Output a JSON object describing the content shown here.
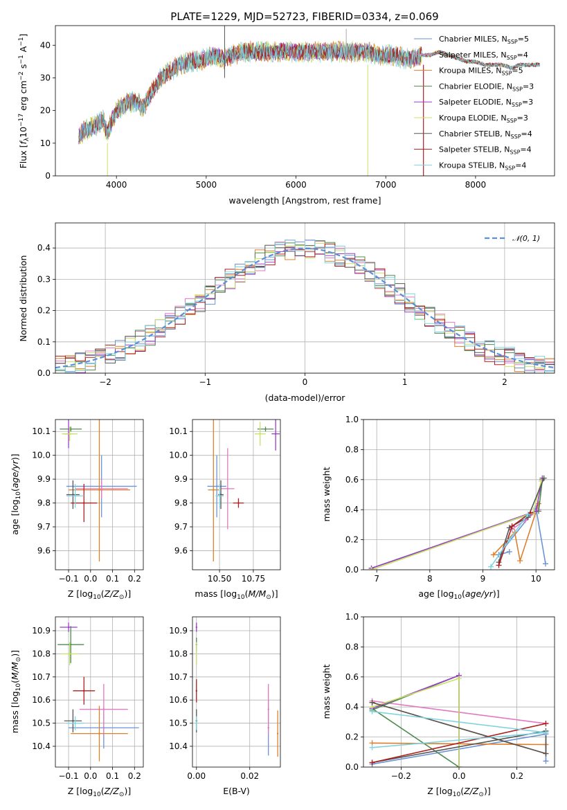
{
  "title": "PLATE=1229, MJD=52723, FIBERID=0334, z=0.069",
  "colors": {
    "chabrier_miles": "#6a93d6",
    "salpeter_miles": "#e377c2",
    "kroupa_miles": "#de7f2a",
    "chabrier_elodie": "#4d8c4d",
    "salpeter_elodie": "#9b3fc7",
    "kroupa_elodie": "#c9e06a",
    "chabrier_stelib": "#555555",
    "salpeter_stelib": "#b01c1c",
    "kroupa_stelib": "#7fd3e0"
  },
  "chart_data": [
    {
      "id": "spectrum",
      "type": "line",
      "title": "PLATE=1229, MJD=52723, FIBERID=0334, z=0.069",
      "xlabel": "wavelength [Angstrom, rest frame]",
      "ylabel": "Flux [f_λ 10^-17 erg cm^-2 s^-1 A^-1]",
      "xlim": [
        3320,
        8880
      ],
      "ylim": [
        0,
        46
      ],
      "xticks": [
        4000,
        5000,
        6000,
        7000,
        8000
      ],
      "yticks": [
        0,
        10,
        20,
        30,
        40
      ],
      "legend_position": "top-right",
      "series": [
        {
          "key": "chabrier_miles",
          "label": "Chabrier MILES, N",
          "sub": "SSP",
          "suffix": "=5"
        },
        {
          "key": "salpeter_miles",
          "label": "Salpeter MILES, N",
          "sub": "SSP",
          "suffix": "=4"
        },
        {
          "key": "kroupa_miles",
          "label": "Kroupa MILES, N",
          "sub": "SSP",
          "suffix": "=5"
        },
        {
          "key": "chabrier_elodie",
          "label": "Chabrier ELODIE, N",
          "sub": "SSP",
          "suffix": "=3"
        },
        {
          "key": "salpeter_elodie",
          "label": "Salpeter ELODIE, N",
          "sub": "SSP",
          "suffix": "=3"
        },
        {
          "key": "kroupa_elodie",
          "label": "Kroupa ELODIE, N",
          "sub": "SSP",
          "suffix": "=3"
        },
        {
          "key": "chabrier_stelib",
          "label": "Chabrier STELIB, N",
          "sub": "SSP",
          "suffix": "=4"
        },
        {
          "key": "salpeter_stelib",
          "label": "Salpeter STELIB, N",
          "sub": "SSP",
          "suffix": "=4"
        },
        {
          "key": "kroupa_stelib",
          "label": "Kroupa STELIB, N",
          "sub": "SSP",
          "suffix": "=4"
        }
      ],
      "continuum": [
        [
          3580,
          12
        ],
        [
          3650,
          14
        ],
        [
          3750,
          15
        ],
        [
          3850,
          17
        ],
        [
          3900,
          13
        ],
        [
          3950,
          17
        ],
        [
          4000,
          20
        ],
        [
          4100,
          22
        ],
        [
          4200,
          23
        ],
        [
          4300,
          21
        ],
        [
          4400,
          26
        ],
        [
          4500,
          30
        ],
        [
          4600,
          32
        ],
        [
          4700,
          34
        ],
        [
          4800,
          35
        ],
        [
          4900,
          35
        ],
        [
          5000,
          36
        ],
        [
          5100,
          37
        ],
        [
          5200,
          36
        ],
        [
          5300,
          37
        ],
        [
          5400,
          38
        ],
        [
          5500,
          38
        ],
        [
          5600,
          38
        ],
        [
          5700,
          38
        ],
        [
          5800,
          38
        ],
        [
          5900,
          38
        ],
        [
          6000,
          38
        ],
        [
          6100,
          38
        ],
        [
          6200,
          38
        ],
        [
          6300,
          38
        ],
        [
          6400,
          38
        ],
        [
          6500,
          38
        ],
        [
          6600,
          38
        ],
        [
          6700,
          38
        ],
        [
          6800,
          38
        ],
        [
          6900,
          37
        ],
        [
          7000,
          37
        ],
        [
          7100,
          37
        ],
        [
          7200,
          36
        ],
        [
          7300,
          36
        ],
        [
          7400,
          37
        ],
        [
          7500,
          37
        ],
        [
          7600,
          38
        ],
        [
          7700,
          37
        ],
        [
          7800,
          36
        ],
        [
          7900,
          35
        ],
        [
          8000,
          35
        ],
        [
          8100,
          34
        ],
        [
          8200,
          34
        ],
        [
          8300,
          34
        ],
        [
          8400,
          33
        ],
        [
          8500,
          34
        ],
        [
          8600,
          34
        ],
        [
          8700,
          34
        ]
      ]
    },
    {
      "id": "residuals",
      "type": "histogram",
      "xlabel": "(data-model)/error",
      "ylabel": "Normed distribution",
      "xlim": [
        -2.5,
        2.5
      ],
      "ylim": [
        0,
        0.48
      ],
      "xticks": [
        -2,
        -1,
        0,
        1,
        2
      ],
      "yticks": [
        0.0,
        0.1,
        0.2,
        0.3,
        0.4
      ],
      "bin_edges_start": -2.5,
      "bin_width": 0.1,
      "grid": true,
      "legend_position": "top-right",
      "reference_label": "𝒩(0, 1)",
      "reference_color": "#5b8fd9"
    },
    {
      "id": "age-vs-Z",
      "type": "scatter",
      "xlabel": "Z [log10(Z/Z⊙)]",
      "ylabel": "age [log10(age/yr)]",
      "xlim": [
        -0.16,
        0.24
      ],
      "ylim": [
        9.52,
        10.15
      ],
      "xticks": [
        -0.1,
        0.0,
        0.1,
        0.2
      ],
      "yticks": [
        9.6,
        9.7,
        9.8,
        9.9,
        10.0,
        10.1
      ],
      "grid": true,
      "points": [
        {
          "key": "chabrier_miles",
          "x": 0.05,
          "y": 9.87,
          "xerr": 0.16,
          "yerr": 0.13
        },
        {
          "key": "salpeter_miles",
          "x": 0.05,
          "y": 9.86,
          "xerr": 0.12,
          "yerr": 0.04
        },
        {
          "key": "kroupa_miles",
          "x": 0.04,
          "y": 9.855,
          "xerr": 0.14,
          "yerr": 0.3
        },
        {
          "key": "chabrier_elodie",
          "x": -0.09,
          "y": 10.11,
          "xerr": 0.05,
          "yerr": 0.01
        },
        {
          "key": "salpeter_elodie",
          "x": -0.1,
          "y": 10.09,
          "xerr": 0.02,
          "yerr": 0.06
        },
        {
          "key": "kroupa_elodie",
          "x": -0.095,
          "y": 10.09,
          "xerr": 0.035,
          "yerr": 0.03
        },
        {
          "key": "chabrier_stelib",
          "x": -0.08,
          "y": 9.835,
          "xerr": 0.03,
          "yerr": 0.06
        },
        {
          "key": "salpeter_stelib",
          "x": -0.03,
          "y": 9.8,
          "xerr": 0.06,
          "yerr": 0.08
        },
        {
          "key": "kroupa_stelib",
          "x": -0.07,
          "y": 9.83,
          "xerr": 0.04,
          "yerr": 0.05
        }
      ]
    },
    {
      "id": "age-vs-mass",
      "type": "scatter",
      "xlabel": "mass [log10(M/M⊙)]",
      "ylabel": "",
      "xlim": [
        10.3,
        10.95
      ],
      "ylim": [
        9.52,
        10.15
      ],
      "xticks": [
        10.5,
        10.75
      ],
      "yticks": [
        9.6,
        9.7,
        9.8,
        9.9,
        10.0,
        10.1
      ],
      "grid": true,
      "points": [
        {
          "key": "chabrier_miles",
          "x": 10.48,
          "y": 9.87,
          "xerr": 0.07,
          "yerr": 0.13
        },
        {
          "key": "salpeter_miles",
          "x": 10.56,
          "y": 9.86,
          "xerr": 0.05,
          "yerr": 0.17
        },
        {
          "key": "kroupa_miles",
          "x": 10.455,
          "y": 9.855,
          "xerr": 0.04,
          "yerr": 0.3
        },
        {
          "key": "chabrier_elodie",
          "x": 10.84,
          "y": 10.11,
          "xerr": 0.06,
          "yerr": 0.01
        },
        {
          "key": "salpeter_elodie",
          "x": 10.915,
          "y": 10.09,
          "xerr": 0.03,
          "yerr": 0.07
        },
        {
          "key": "kroupa_elodie",
          "x": 10.8,
          "y": 10.09,
          "xerr": 0.04,
          "yerr": 0.05
        },
        {
          "key": "chabrier_stelib",
          "x": 10.51,
          "y": 9.835,
          "xerr": 0.02,
          "yerr": 0.06
        },
        {
          "key": "salpeter_stelib",
          "x": 10.64,
          "y": 9.8,
          "xerr": 0.04,
          "yerr": 0.02
        },
        {
          "key": "kroupa_stelib",
          "x": 10.5,
          "y": 9.83,
          "xerr": 0.03,
          "yerr": 0.05
        }
      ]
    },
    {
      "id": "weight-vs-age",
      "type": "line",
      "xlabel": "age [log10(age/yr)]",
      "ylabel": "mass weight",
      "xlim": [
        6.75,
        10.35
      ],
      "ylim": [
        0,
        1.0
      ],
      "xticks": [
        7,
        8,
        9,
        10
      ],
      "yticks": [
        0.0,
        0.2,
        0.4,
        0.6,
        0.8,
        1.0
      ],
      "grid": true,
      "series": [
        {
          "key": "chabrier_miles",
          "x": [
            9.5,
            9.3,
            10.0,
            10.18
          ],
          "y": [
            0.12,
            0.1,
            0.41,
            0.04
          ]
        },
        {
          "key": "salpeter_miles",
          "x": [
            9.55,
            9.8,
            10.05
          ],
          "y": [
            0.27,
            0.33,
            0.4
          ]
        },
        {
          "key": "kroupa_miles",
          "x": [
            9.2,
            9.6,
            9.7,
            10.05
          ],
          "y": [
            0.1,
            0.25,
            0.06,
            0.44
          ]
        },
        {
          "key": "chabrier_elodie",
          "x": [
            6.9,
            10.05,
            10.12
          ],
          "y": [
            0.01,
            0.39,
            0.6
          ]
        },
        {
          "key": "salpeter_elodie",
          "x": [
            6.9,
            10.0,
            10.12
          ],
          "y": [
            0.01,
            0.39,
            0.61
          ]
        },
        {
          "key": "kroupa_elodie",
          "x": [
            6.9,
            9.95,
            10.1
          ],
          "y": [
            0.0,
            0.38,
            0.59
          ]
        },
        {
          "key": "chabrier_stelib",
          "x": [
            9.3,
            9.5,
            9.85,
            10.15
          ],
          "y": [
            0.05,
            0.28,
            0.35,
            0.61
          ]
        },
        {
          "key": "salpeter_stelib",
          "x": [
            9.3,
            9.55,
            9.9
          ],
          "y": [
            0.03,
            0.29,
            0.38
          ]
        },
        {
          "key": "kroupa_stelib",
          "x": [
            9.15,
            9.5,
            9.85
          ],
          "y": [
            0.02,
            0.2,
            0.37
          ]
        }
      ]
    },
    {
      "id": "mass-vs-Z",
      "type": "scatter",
      "xlabel": "Z [log10(Z/Z⊙)]",
      "ylabel": "mass [log10(M/M⊙)]",
      "xlim": [
        -0.16,
        0.24
      ],
      "ylim": [
        10.31,
        10.96
      ],
      "xticks": [
        -0.1,
        0.0,
        0.1,
        0.2
      ],
      "yticks": [
        10.4,
        10.5,
        10.6,
        10.7,
        10.8,
        10.9
      ],
      "grid": true,
      "points": [
        {
          "key": "chabrier_miles",
          "x": 0.06,
          "y": 10.48,
          "xerr": 0.16,
          "yerr": 0.09
        },
        {
          "key": "salpeter_miles",
          "x": 0.06,
          "y": 10.56,
          "xerr": 0.11,
          "yerr": 0.11
        },
        {
          "key": "kroupa_miles",
          "x": 0.04,
          "y": 10.455,
          "xerr": 0.13,
          "yerr": 0.12
        },
        {
          "key": "chabrier_elodie",
          "x": -0.09,
          "y": 10.84,
          "xerr": 0.06,
          "yerr": 0.08
        },
        {
          "key": "salpeter_elodie",
          "x": -0.1,
          "y": 10.915,
          "xerr": 0.04,
          "yerr": 0.02
        },
        {
          "key": "kroupa_elodie",
          "x": -0.095,
          "y": 10.8,
          "xerr": 0.04,
          "yerr": 0.05
        },
        {
          "key": "chabrier_stelib",
          "x": -0.08,
          "y": 10.51,
          "xerr": 0.04,
          "yerr": 0.05
        },
        {
          "key": "salpeter_stelib",
          "x": -0.03,
          "y": 10.64,
          "xerr": 0.05,
          "yerr": 0.06
        },
        {
          "key": "kroupa_stelib",
          "x": -0.07,
          "y": 10.5,
          "xerr": 0.04,
          "yerr": 0.03
        }
      ]
    },
    {
      "id": "mass-vs-ebv",
      "type": "scatter",
      "xlabel": "E(B-V)",
      "ylabel": "",
      "xlim": [
        -0.0015,
        0.0315
      ],
      "ylim": [
        10.31,
        10.96
      ],
      "xticks": [
        0.0,
        0.02
      ],
      "xtick_labels": [
        "0.00",
        "0.02"
      ],
      "yticks": [
        10.4,
        10.5,
        10.6,
        10.7,
        10.8,
        10.9
      ],
      "grid": true,
      "points": [
        {
          "key": "chabrier_miles",
          "x": 0.027,
          "y": 10.48,
          "xerr": 0,
          "yerr": 0.12
        },
        {
          "key": "salpeter_miles",
          "x": 0.027,
          "y": 10.56,
          "xerr": 0,
          "yerr": 0.11
        },
        {
          "key": "kroupa_miles",
          "x": 0.0305,
          "y": 10.455,
          "xerr": 0,
          "yerr": 0.1
        },
        {
          "key": "chabrier_elodie",
          "x": 0.0,
          "y": 10.84,
          "xerr": 0,
          "yerr": 0.03
        },
        {
          "key": "salpeter_elodie",
          "x": 0.0,
          "y": 10.915,
          "xerr": 0,
          "yerr": 0.02
        },
        {
          "key": "kroupa_elodie",
          "x": 0.0,
          "y": 10.8,
          "xerr": 0,
          "yerr": 0.05
        },
        {
          "key": "chabrier_stelib",
          "x": 0.0,
          "y": 10.51,
          "xerr": 0,
          "yerr": 0.05
        },
        {
          "key": "salpeter_stelib",
          "x": 0.0,
          "y": 10.64,
          "xerr": 0,
          "yerr": 0.05
        },
        {
          "key": "kroupa_stelib",
          "x": 0.0,
          "y": 10.5,
          "xerr": 0,
          "yerr": 0.03
        }
      ]
    },
    {
      "id": "weight-vs-Z",
      "type": "line",
      "xlabel": "Z [log10(Z/Z⊙)]",
      "ylabel": "mass weight",
      "xlim": [
        -0.33,
        0.33
      ],
      "ylim": [
        0,
        1.0
      ],
      "xticks": [
        -0.2,
        0.0,
        0.2
      ],
      "yticks": [
        0.0,
        0.2,
        0.4,
        0.6,
        0.8,
        1.0
      ],
      "grid": true,
      "series": [
        {
          "key": "chabrier_miles",
          "x": [
            -0.3,
            0.3,
            0.3
          ],
          "y": [
            0.02,
            0.22,
            0.04
          ]
        },
        {
          "key": "salpeter_miles",
          "x": [
            -0.3,
            0.3
          ],
          "y": [
            0.44,
            0.29
          ]
        },
        {
          "key": "kroupa_miles",
          "x": [
            -0.3,
            0.3,
            0.3,
            -0.3
          ],
          "y": [
            0.43,
            0.09,
            0.15,
            0.16
          ]
        },
        {
          "key": "chabrier_elodie",
          "x": [
            -0.3,
            0.0,
            0.0,
            -0.3
          ],
          "y": [
            0.38,
            0.61,
            0.0,
            0.39
          ]
        },
        {
          "key": "salpeter_elodie",
          "x": [
            -0.3,
            0.0,
            0.0
          ],
          "y": [
            0.39,
            0.61,
            0.0
          ]
        },
        {
          "key": "kroupa_elodie",
          "x": [
            -0.3,
            0.0,
            0.0
          ],
          "y": [
            0.4,
            0.59,
            0.0
          ]
        },
        {
          "key": "chabrier_stelib",
          "x": [
            -0.3,
            0.3,
            0.3,
            -0.3
          ],
          "y": [
            0.03,
            0.24,
            0.09,
            0.43
          ]
        },
        {
          "key": "salpeter_stelib",
          "x": [
            -0.3,
            0.3
          ],
          "y": [
            0.03,
            0.29
          ]
        },
        {
          "key": "kroupa_stelib",
          "x": [
            -0.3,
            0.3,
            -0.3
          ],
          "y": [
            0.13,
            0.23,
            0.37
          ]
        }
      ]
    }
  ]
}
